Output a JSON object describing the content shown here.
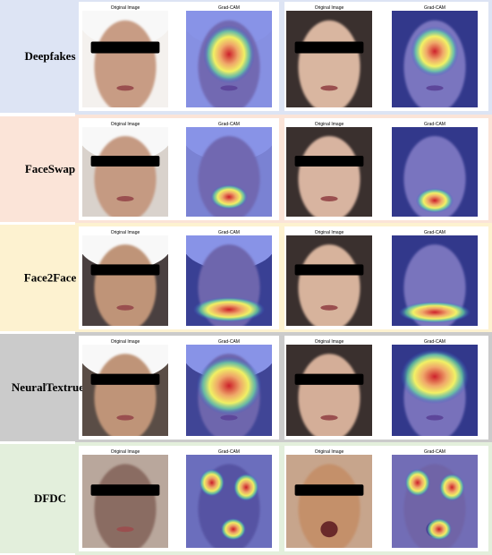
{
  "rows": [
    {
      "label": "Deepfakes",
      "panels": [
        {
          "caption": "Original Image"
        },
        {
          "caption": "Grad-CAM"
        },
        {
          "caption": "Original Image"
        },
        {
          "caption": "Grad-CAM"
        }
      ]
    },
    {
      "label": "FaceSwap",
      "panels": [
        {
          "caption": "Original Image"
        },
        {
          "caption": "Grad-CAM"
        },
        {
          "caption": "Original Image"
        },
        {
          "caption": "Grad-CAM"
        }
      ]
    },
    {
      "label": "Face2Face",
      "panels": [
        {
          "caption": "Original Image"
        },
        {
          "caption": "Grad-CAM"
        },
        {
          "caption": "Original Image"
        },
        {
          "caption": "Grad-CAM"
        }
      ]
    },
    {
      "label": "NeuralTextrues",
      "panels": [
        {
          "caption": "Original Image"
        },
        {
          "caption": "Grad-CAM"
        },
        {
          "caption": "Original Image"
        },
        {
          "caption": "Grad-CAM"
        }
      ]
    },
    {
      "label": "DFDC",
      "panels": [
        {
          "caption": "Original Image"
        },
        {
          "caption": "Grad-CAM"
        },
        {
          "caption": "Original Image"
        },
        {
          "caption": "Grad-CAM"
        }
      ]
    }
  ]
}
